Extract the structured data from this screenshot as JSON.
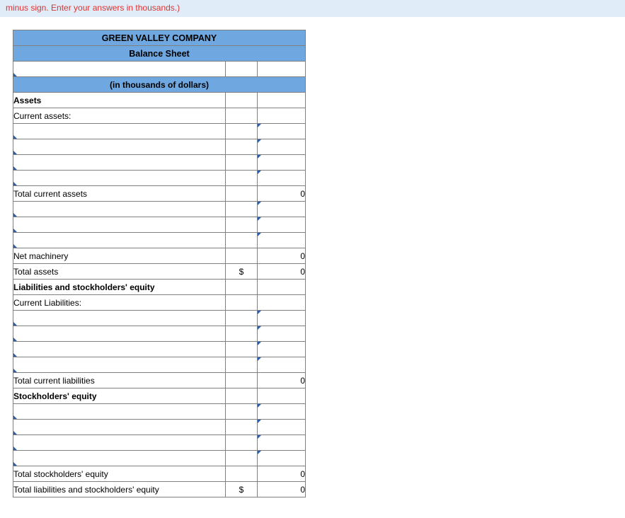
{
  "instruction": "minus sign. Enter your answers in thousands.)",
  "header": {
    "company": "GREEN VALLEY COMPANY",
    "title": "Balance Sheet",
    "units": "(in thousands of dollars)"
  },
  "rows": {
    "assets": "Assets",
    "current_assets": "Current assets:",
    "total_current_assets": "Total current assets",
    "net_machinery": "Net machinery",
    "total_assets": "Total assets",
    "liab_se": "Liabilities and stockholders' equity",
    "current_liab": "Current Liabilities:",
    "total_current_liab": "Total current liabilities",
    "stockholders_equity": "Stockholders' equity",
    "total_se": "Total stockholders' equity",
    "total_liab_se": "Total liabilities and stockholders' equity"
  },
  "values": {
    "total_current_assets": "0",
    "net_machinery": "0",
    "total_assets_sym": "$",
    "total_assets": "0",
    "total_current_liab": "0",
    "total_se": "0",
    "total_liab_se_sym": "$",
    "total_liab_se": "0"
  },
  "style": {
    "header_bg": "#6fa8e0",
    "border": "#808080",
    "instruction_bg": "#e0ecf7",
    "instruction_color": "#d33",
    "indicator": "#2a5db0"
  }
}
